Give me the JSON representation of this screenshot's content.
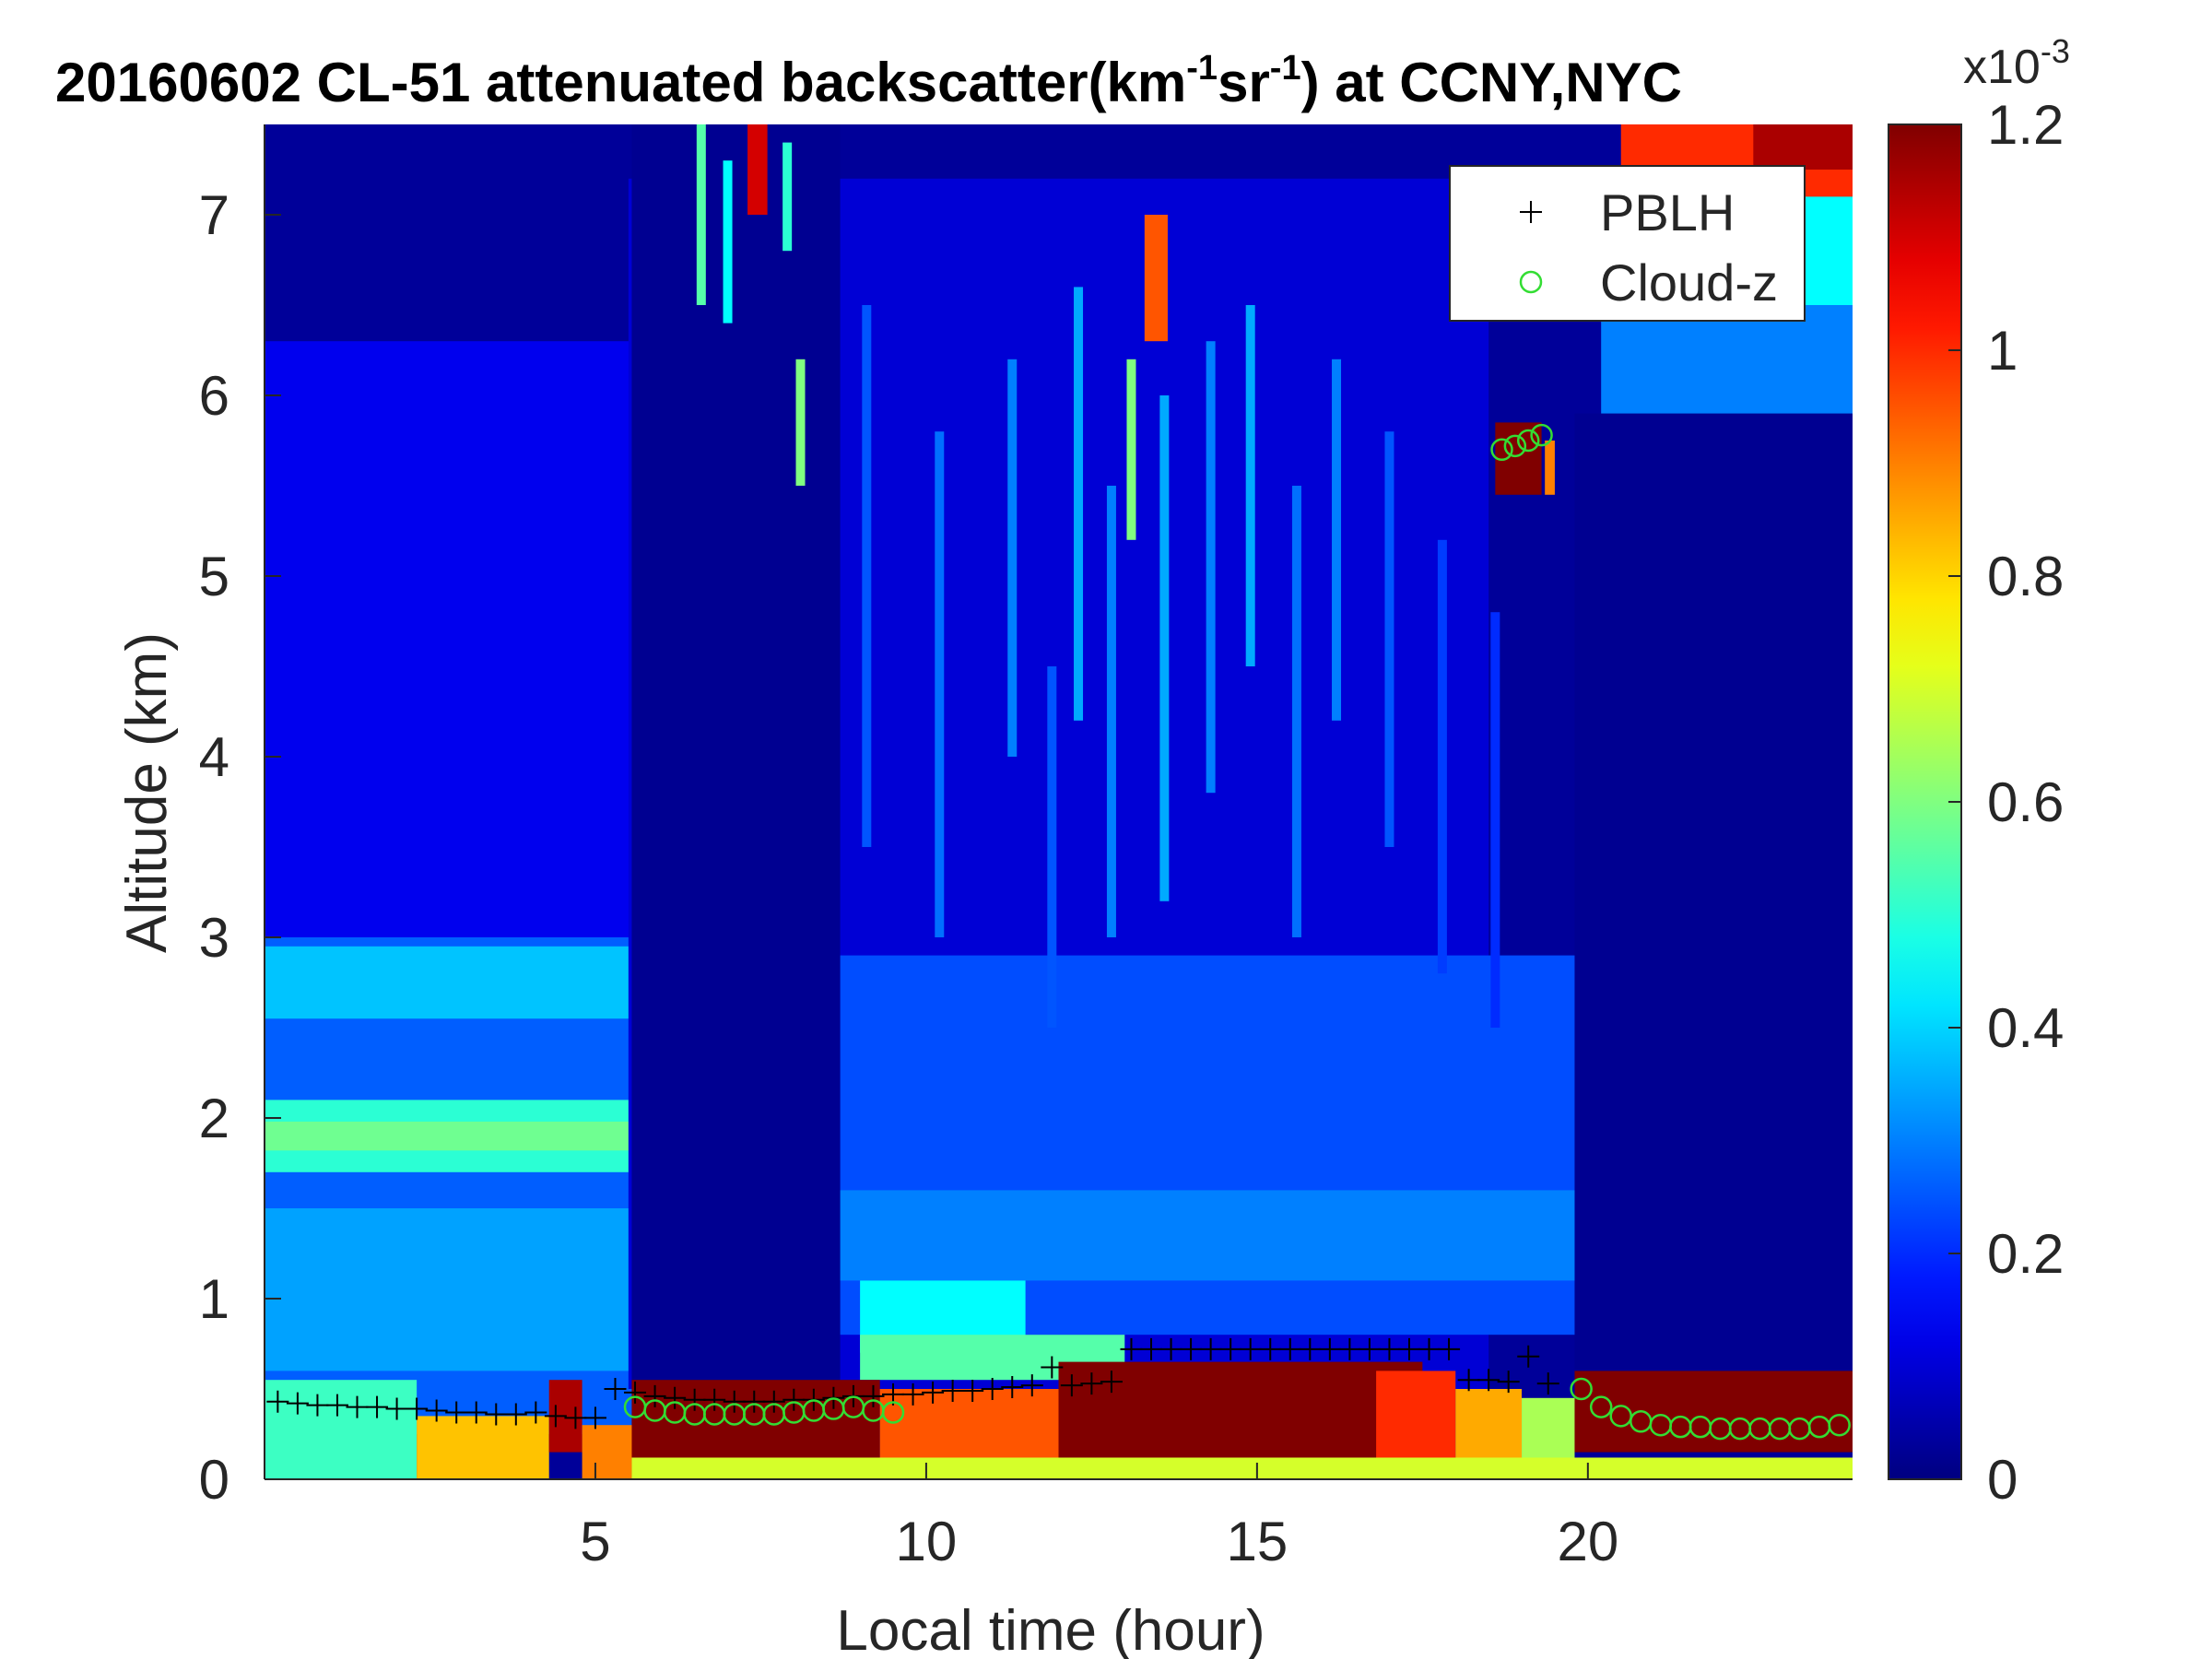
{
  "chart_data": {
    "type": "heatmap",
    "title": {
      "parts": [
        {
          "text": "20160602  CL-51 attenuated backscatter(km"
        },
        {
          "text": "-1",
          "sup": true
        },
        {
          "text": "sr"
        },
        {
          "text": "-1",
          "sup": true
        },
        {
          "text": ") at CCNY,NYC"
        }
      ]
    },
    "xlabel": "Local time (hour)",
    "ylabel": "Altitude (km)",
    "xlim": [
      0,
      24
    ],
    "ylim": [
      0,
      7.5
    ],
    "xticks": [
      5,
      10,
      15,
      20
    ],
    "yticks": [
      0,
      1,
      2,
      3,
      4,
      5,
      6,
      7
    ],
    "colorbar": {
      "colormap": "jet",
      "clim": [
        0,
        1.2
      ],
      "ticks": [
        0,
        0.2,
        0.4,
        0.6,
        0.8,
        1,
        1.2
      ],
      "exponent_label": "x10",
      "exponent": "-3"
    },
    "legend": {
      "location": "top-right",
      "entries": [
        {
          "name": "PBLH",
          "marker": "plus",
          "color": "#000000"
        },
        {
          "name": "Cloud-z",
          "marker": "circle",
          "color": "#33dd33"
        }
      ]
    },
    "layers": [
      {
        "t0": 0,
        "t1": 24,
        "h0": 0,
        "h1": 7.5,
        "level": 0.03
      },
      {
        "t0": 0,
        "t1": 5.55,
        "h0": 0.35,
        "h1": 6.3,
        "level": 0.13
      },
      {
        "t0": 0,
        "t1": 5.55,
        "h0": 0.25,
        "h1": 3.0,
        "level": 0.26
      },
      {
        "t0": 0,
        "t1": 5.55,
        "h0": 2.55,
        "h1": 2.95,
        "level": 0.38
      },
      {
        "t0": 0,
        "t1": 5.55,
        "h0": 1.7,
        "h1": 2.1,
        "level": 0.5
      },
      {
        "t0": 0,
        "t1": 5.55,
        "h0": 1.82,
        "h1": 1.98,
        "level": 0.58
      },
      {
        "t0": 0,
        "t1": 5.55,
        "h0": 0.6,
        "h1": 1.5,
        "level": 0.34
      },
      {
        "t0": 0,
        "t1": 2.3,
        "h0": 0,
        "h1": 0.55,
        "level": 0.52
      },
      {
        "t0": 2.3,
        "t1": 4.3,
        "h0": 0,
        "h1": 0.35,
        "level": 0.82
      },
      {
        "t0": 4.3,
        "t1": 4.8,
        "h0": 0.15,
        "h1": 0.55,
        "level": 1.15
      },
      {
        "t0": 4.8,
        "t1": 5.6,
        "h0": 0,
        "h1": 0.3,
        "level": 0.9
      },
      {
        "t0": 5.5,
        "t1": 18.5,
        "h0": 0.5,
        "h1": 7.2,
        "level": 0.1
      },
      {
        "t0": 8.7,
        "t1": 19.8,
        "h0": 0.8,
        "h1": 2.9,
        "level": 0.24
      },
      {
        "t0": 8.7,
        "t1": 19.8,
        "h0": 1.1,
        "h1": 1.6,
        "level": 0.3
      },
      {
        "t0": 9.0,
        "t1": 11.5,
        "h0": 0.7,
        "h1": 1.1,
        "level": 0.45
      },
      {
        "t0": 9.0,
        "t1": 13.0,
        "h0": 0.55,
        "h1": 0.8,
        "level": 0.55
      },
      {
        "t0": 5.55,
        "t1": 8.7,
        "h0": 0.5,
        "h1": 7.5,
        "level": 0.02
      },
      {
        "t0": 19.8,
        "t1": 24,
        "h0": 0.5,
        "h1": 5.9,
        "level": 0.02
      },
      {
        "t0": 20.2,
        "t1": 24,
        "h0": 5.9,
        "h1": 6.5,
        "level": 0.3
      },
      {
        "t0": 20.2,
        "t1": 24,
        "h0": 6.5,
        "h1": 7.2,
        "level": 0.45
      },
      {
        "t0": 20.5,
        "t1": 24,
        "h0": 7.1,
        "h1": 7.5,
        "level": 1.0
      },
      {
        "t0": 22.5,
        "t1": 24,
        "h0": 7.25,
        "h1": 7.5,
        "level": 1.15
      },
      {
        "t0": 5.55,
        "t1": 9.3,
        "h0": 0,
        "h1": 0.55,
        "level": 1.2
      },
      {
        "t0": 9.3,
        "t1": 12.8,
        "h0": 0,
        "h1": 0.5,
        "level": 0.95
      },
      {
        "t0": 12.0,
        "t1": 17.5,
        "h0": 0,
        "h1": 0.65,
        "level": 1.2
      },
      {
        "t0": 16.8,
        "t1": 18.0,
        "h0": 0,
        "h1": 0.6,
        "level": 1.0
      },
      {
        "t0": 18.0,
        "t1": 19.0,
        "h0": 0,
        "h1": 0.5,
        "level": 0.85
      },
      {
        "t0": 19.0,
        "t1": 19.8,
        "h0": 0,
        "h1": 0.45,
        "level": 0.65
      },
      {
        "t0": 19.8,
        "t1": 24,
        "h0": 0.15,
        "h1": 0.6,
        "level": 1.2
      },
      {
        "t0": 5.55,
        "t1": 24,
        "h0": 0,
        "h1": 0.12,
        "level": 0.7
      },
      {
        "t0": 18.6,
        "t1": 19.3,
        "h0": 5.45,
        "h1": 5.85,
        "level": 1.2
      },
      {
        "t0": 19.35,
        "t1": 19.5,
        "h0": 5.45,
        "h1": 5.75,
        "level": 0.9
      },
      {
        "t0": 13.3,
        "t1": 13.65,
        "h0": 6.3,
        "h1": 7.0,
        "level": 0.95
      },
      {
        "t0": 7.3,
        "t1": 7.6,
        "h0": 7.0,
        "h1": 7.5,
        "level": 1.1
      }
    ],
    "streaks": [
      {
        "t": 6.6,
        "h0": 6.5,
        "h1": 7.5,
        "level": 0.55
      },
      {
        "t": 7.0,
        "h0": 6.4,
        "h1": 7.3,
        "level": 0.45
      },
      {
        "t": 7.9,
        "h0": 6.8,
        "h1": 7.4,
        "level": 0.5
      },
      {
        "t": 8.1,
        "h0": 5.5,
        "h1": 6.2,
        "level": 0.6
      },
      {
        "t": 9.1,
        "h0": 3.5,
        "h1": 6.5,
        "level": 0.25
      },
      {
        "t": 10.2,
        "h0": 3.0,
        "h1": 5.8,
        "level": 0.28
      },
      {
        "t": 11.3,
        "h0": 4.0,
        "h1": 6.2,
        "level": 0.3
      },
      {
        "t": 11.9,
        "h0": 2.5,
        "h1": 4.5,
        "level": 0.25
      },
      {
        "t": 12.3,
        "h0": 4.2,
        "h1": 6.6,
        "level": 0.35
      },
      {
        "t": 12.8,
        "h0": 3.0,
        "h1": 5.5,
        "level": 0.3
      },
      {
        "t": 13.1,
        "h0": 5.2,
        "h1": 6.2,
        "level": 0.6
      },
      {
        "t": 13.6,
        "h0": 3.2,
        "h1": 6.0,
        "level": 0.35
      },
      {
        "t": 14.3,
        "h0": 3.8,
        "h1": 6.3,
        "level": 0.3
      },
      {
        "t": 14.9,
        "h0": 4.5,
        "h1": 6.5,
        "level": 0.35
      },
      {
        "t": 15.6,
        "h0": 3.0,
        "h1": 5.5,
        "level": 0.28
      },
      {
        "t": 16.2,
        "h0": 4.2,
        "h1": 6.2,
        "level": 0.3
      },
      {
        "t": 17.0,
        "h0": 3.5,
        "h1": 5.8,
        "level": 0.25
      },
      {
        "t": 17.8,
        "h0": 2.8,
        "h1": 5.2,
        "level": 0.22
      },
      {
        "t": 18.6,
        "h0": 2.5,
        "h1": 4.8,
        "level": 0.2
      }
    ],
    "series": [
      {
        "name": "PBLH",
        "marker": "plus",
        "x": [
          0.2,
          0.5,
          0.8,
          1.1,
          1.4,
          1.7,
          2.0,
          2.3,
          2.6,
          2.9,
          3.2,
          3.5,
          3.8,
          4.1,
          4.4,
          4.7,
          5.0,
          5.3,
          5.6,
          5.9,
          6.2,
          6.5,
          6.8,
          7.1,
          7.4,
          7.7,
          8.0,
          8.3,
          8.6,
          8.9,
          9.2,
          9.5,
          9.8,
          10.1,
          10.4,
          10.7,
          11.0,
          11.3,
          11.6,
          11.9,
          12.2,
          12.5,
          12.8,
          13.1,
          13.4,
          13.7,
          14.0,
          14.3,
          14.6,
          14.9,
          15.2,
          15.5,
          15.8,
          16.1,
          16.4,
          16.7,
          17.0,
          17.3,
          17.6,
          17.9,
          18.2,
          18.5,
          18.8,
          19.1,
          19.4
        ],
        "y": [
          0.43,
          0.42,
          0.41,
          0.41,
          0.4,
          0.4,
          0.39,
          0.39,
          0.38,
          0.37,
          0.37,
          0.36,
          0.36,
          0.37,
          0.35,
          0.34,
          0.34,
          0.5,
          0.48,
          0.46,
          0.45,
          0.44,
          0.44,
          0.43,
          0.43,
          0.43,
          0.44,
          0.44,
          0.45,
          0.46,
          0.46,
          0.47,
          0.47,
          0.48,
          0.49,
          0.49,
          0.5,
          0.51,
          0.52,
          0.62,
          0.52,
          0.53,
          0.54,
          0.72,
          0.72,
          0.72,
          0.72,
          0.72,
          0.72,
          0.72,
          0.72,
          0.72,
          0.72,
          0.72,
          0.72,
          0.72,
          0.72,
          0.72,
          0.72,
          0.72,
          0.55,
          0.55,
          0.54,
          0.68,
          0.53
        ]
      },
      {
        "name": "Cloud-z",
        "marker": "circle",
        "x": [
          5.6,
          5.9,
          6.2,
          6.5,
          6.8,
          7.1,
          7.4,
          7.7,
          8.0,
          8.3,
          8.6,
          8.9,
          9.2,
          9.5,
          18.7,
          18.9,
          19.1,
          19.3,
          19.9,
          20.2,
          20.5,
          20.8,
          21.1,
          21.4,
          21.7,
          22.0,
          22.3,
          22.6,
          22.9,
          23.2,
          23.5,
          23.8
        ],
        "y": [
          0.4,
          0.38,
          0.37,
          0.36,
          0.36,
          0.36,
          0.36,
          0.36,
          0.37,
          0.38,
          0.39,
          0.4,
          0.38,
          0.37,
          5.7,
          5.72,
          5.75,
          5.78,
          0.5,
          0.4,
          0.35,
          0.32,
          0.3,
          0.29,
          0.29,
          0.28,
          0.28,
          0.28,
          0.28,
          0.28,
          0.29,
          0.3
        ]
      }
    ]
  }
}
